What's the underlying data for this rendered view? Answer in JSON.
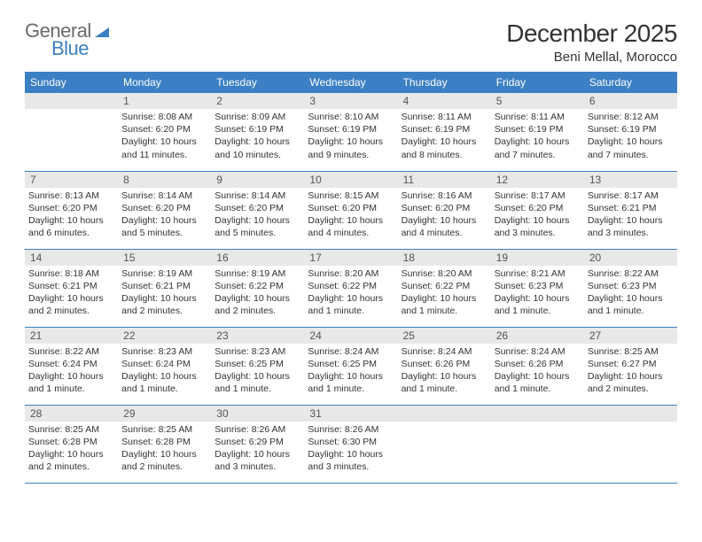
{
  "brand": {
    "word1": "General",
    "word2": "Blue"
  },
  "title": "December 2025",
  "location": "Beni Mellal, Morocco",
  "colors": {
    "accent": "#3b7fc4",
    "daynum_bg": "#e8e8e8",
    "text": "#333333",
    "logo_gray": "#6a6a6a"
  },
  "day_headers": [
    "Sunday",
    "Monday",
    "Tuesday",
    "Wednesday",
    "Thursday",
    "Friday",
    "Saturday"
  ],
  "weeks": [
    [
      null,
      {
        "n": "1",
        "sr": "Sunrise: 8:08 AM",
        "ss": "Sunset: 6:20 PM",
        "dl": "Daylight: 10 hours and 11 minutes."
      },
      {
        "n": "2",
        "sr": "Sunrise: 8:09 AM",
        "ss": "Sunset: 6:19 PM",
        "dl": "Daylight: 10 hours and 10 minutes."
      },
      {
        "n": "3",
        "sr": "Sunrise: 8:10 AM",
        "ss": "Sunset: 6:19 PM",
        "dl": "Daylight: 10 hours and 9 minutes."
      },
      {
        "n": "4",
        "sr": "Sunrise: 8:11 AM",
        "ss": "Sunset: 6:19 PM",
        "dl": "Daylight: 10 hours and 8 minutes."
      },
      {
        "n": "5",
        "sr": "Sunrise: 8:11 AM",
        "ss": "Sunset: 6:19 PM",
        "dl": "Daylight: 10 hours and 7 minutes."
      },
      {
        "n": "6",
        "sr": "Sunrise: 8:12 AM",
        "ss": "Sunset: 6:19 PM",
        "dl": "Daylight: 10 hours and 7 minutes."
      }
    ],
    [
      {
        "n": "7",
        "sr": "Sunrise: 8:13 AM",
        "ss": "Sunset: 6:20 PM",
        "dl": "Daylight: 10 hours and 6 minutes."
      },
      {
        "n": "8",
        "sr": "Sunrise: 8:14 AM",
        "ss": "Sunset: 6:20 PM",
        "dl": "Daylight: 10 hours and 5 minutes."
      },
      {
        "n": "9",
        "sr": "Sunrise: 8:14 AM",
        "ss": "Sunset: 6:20 PM",
        "dl": "Daylight: 10 hours and 5 minutes."
      },
      {
        "n": "10",
        "sr": "Sunrise: 8:15 AM",
        "ss": "Sunset: 6:20 PM",
        "dl": "Daylight: 10 hours and 4 minutes."
      },
      {
        "n": "11",
        "sr": "Sunrise: 8:16 AM",
        "ss": "Sunset: 6:20 PM",
        "dl": "Daylight: 10 hours and 4 minutes."
      },
      {
        "n": "12",
        "sr": "Sunrise: 8:17 AM",
        "ss": "Sunset: 6:20 PM",
        "dl": "Daylight: 10 hours and 3 minutes."
      },
      {
        "n": "13",
        "sr": "Sunrise: 8:17 AM",
        "ss": "Sunset: 6:21 PM",
        "dl": "Daylight: 10 hours and 3 minutes."
      }
    ],
    [
      {
        "n": "14",
        "sr": "Sunrise: 8:18 AM",
        "ss": "Sunset: 6:21 PM",
        "dl": "Daylight: 10 hours and 2 minutes."
      },
      {
        "n": "15",
        "sr": "Sunrise: 8:19 AM",
        "ss": "Sunset: 6:21 PM",
        "dl": "Daylight: 10 hours and 2 minutes."
      },
      {
        "n": "16",
        "sr": "Sunrise: 8:19 AM",
        "ss": "Sunset: 6:22 PM",
        "dl": "Daylight: 10 hours and 2 minutes."
      },
      {
        "n": "17",
        "sr": "Sunrise: 8:20 AM",
        "ss": "Sunset: 6:22 PM",
        "dl": "Daylight: 10 hours and 1 minute."
      },
      {
        "n": "18",
        "sr": "Sunrise: 8:20 AM",
        "ss": "Sunset: 6:22 PM",
        "dl": "Daylight: 10 hours and 1 minute."
      },
      {
        "n": "19",
        "sr": "Sunrise: 8:21 AM",
        "ss": "Sunset: 6:23 PM",
        "dl": "Daylight: 10 hours and 1 minute."
      },
      {
        "n": "20",
        "sr": "Sunrise: 8:22 AM",
        "ss": "Sunset: 6:23 PM",
        "dl": "Daylight: 10 hours and 1 minute."
      }
    ],
    [
      {
        "n": "21",
        "sr": "Sunrise: 8:22 AM",
        "ss": "Sunset: 6:24 PM",
        "dl": "Daylight: 10 hours and 1 minute."
      },
      {
        "n": "22",
        "sr": "Sunrise: 8:23 AM",
        "ss": "Sunset: 6:24 PM",
        "dl": "Daylight: 10 hours and 1 minute."
      },
      {
        "n": "23",
        "sr": "Sunrise: 8:23 AM",
        "ss": "Sunset: 6:25 PM",
        "dl": "Daylight: 10 hours and 1 minute."
      },
      {
        "n": "24",
        "sr": "Sunrise: 8:24 AM",
        "ss": "Sunset: 6:25 PM",
        "dl": "Daylight: 10 hours and 1 minute."
      },
      {
        "n": "25",
        "sr": "Sunrise: 8:24 AM",
        "ss": "Sunset: 6:26 PM",
        "dl": "Daylight: 10 hours and 1 minute."
      },
      {
        "n": "26",
        "sr": "Sunrise: 8:24 AM",
        "ss": "Sunset: 6:26 PM",
        "dl": "Daylight: 10 hours and 1 minute."
      },
      {
        "n": "27",
        "sr": "Sunrise: 8:25 AM",
        "ss": "Sunset: 6:27 PM",
        "dl": "Daylight: 10 hours and 2 minutes."
      }
    ],
    [
      {
        "n": "28",
        "sr": "Sunrise: 8:25 AM",
        "ss": "Sunset: 6:28 PM",
        "dl": "Daylight: 10 hours and 2 minutes."
      },
      {
        "n": "29",
        "sr": "Sunrise: 8:25 AM",
        "ss": "Sunset: 6:28 PM",
        "dl": "Daylight: 10 hours and 2 minutes."
      },
      {
        "n": "30",
        "sr": "Sunrise: 8:26 AM",
        "ss": "Sunset: 6:29 PM",
        "dl": "Daylight: 10 hours and 3 minutes."
      },
      {
        "n": "31",
        "sr": "Sunrise: 8:26 AM",
        "ss": "Sunset: 6:30 PM",
        "dl": "Daylight: 10 hours and 3 minutes."
      },
      null,
      null,
      null
    ]
  ]
}
